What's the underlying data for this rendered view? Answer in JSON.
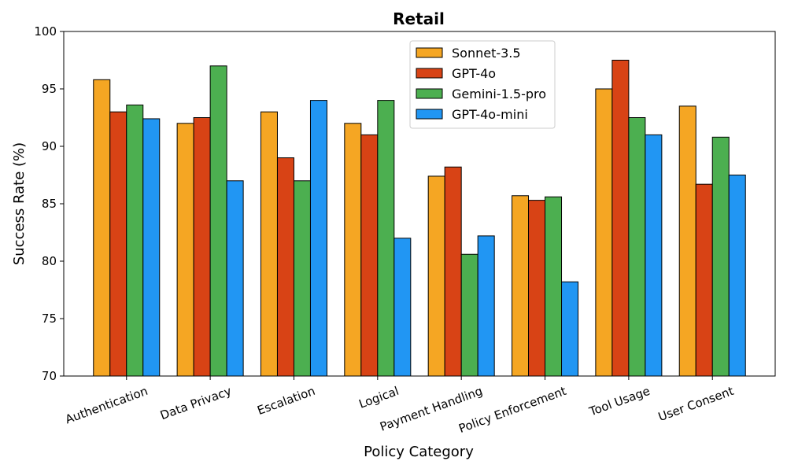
{
  "chart_data": {
    "type": "bar",
    "title": "Retail",
    "xlabel": "Policy Category",
    "ylabel": "Success Rate (%)",
    "ylim": [
      70,
      100
    ],
    "yticks": [
      70,
      75,
      80,
      85,
      90,
      95,
      100
    ],
    "categories": [
      "Authentication",
      "Data Privacy",
      "Escalation",
      "Logical",
      "Payment Handling",
      "Policy Enforcement",
      "Tool Usage",
      "User Consent"
    ],
    "series": [
      {
        "name": "Sonnet-3.5",
        "color": "#F5A623",
        "values": [
          95.8,
          92.0,
          93.0,
          92.0,
          87.4,
          85.7,
          95.0,
          93.5
        ]
      },
      {
        "name": "GPT-4o",
        "color": "#D84315",
        "values": [
          93.0,
          92.5,
          89.0,
          91.0,
          88.2,
          85.3,
          97.5,
          86.7
        ]
      },
      {
        "name": "Gemini-1.5-pro",
        "color": "#4CAF50",
        "values": [
          93.6,
          97.0,
          87.0,
          94.0,
          80.6,
          85.6,
          92.5,
          90.8
        ]
      },
      {
        "name": "GPT-4o-mini",
        "color": "#2196F3",
        "values": [
          92.4,
          87.0,
          94.0,
          82.0,
          82.2,
          78.2,
          91.0,
          87.5
        ]
      }
    ],
    "legend_position": "top-center",
    "grid": false
  }
}
